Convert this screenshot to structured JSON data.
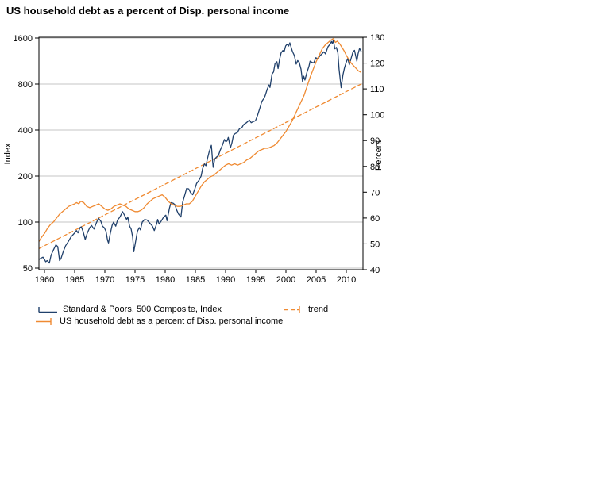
{
  "title": "US household debt as a percent of Disp. personal income",
  "colors": {
    "grid": "#c6c6c6",
    "frame": "#000000",
    "background": "#ffffff",
    "sp500": "#20406b",
    "debt": "#ef8a32"
  },
  "chart_data": {
    "type": "line",
    "title": "US household debt as a percent of Disp. personal income",
    "grid": "horizontal",
    "legend_position": "below",
    "x_axis": {
      "range": [
        1959.1,
        2012.8
      ],
      "ticks": [
        1960,
        1965,
        1970,
        1975,
        1980,
        1985,
        1990,
        1995,
        2000,
        2005,
        2010
      ]
    },
    "left_axis": {
      "label": "Index",
      "scale": "log",
      "ticks": [
        1600,
        800,
        400,
        200,
        100,
        50
      ]
    },
    "right_axis": {
      "label": "Percent",
      "scale": "linear",
      "range": [
        40,
        130
      ],
      "ticks": [
        130,
        120,
        110,
        100,
        90,
        80,
        70,
        60,
        50,
        40
      ]
    },
    "series": [
      {
        "name": "Standard & Poors, 500 Composite, Index",
        "axis": "left",
        "color": "#20406b",
        "style": "solid",
        "points": [
          [
            1959.1,
            57
          ],
          [
            1959.4,
            58
          ],
          [
            1959.75,
            59
          ],
          [
            1960.0,
            57
          ],
          [
            1960.2,
            55
          ],
          [
            1960.45,
            56
          ],
          [
            1960.8,
            54
          ],
          [
            1961.1,
            61
          ],
          [
            1961.5,
            66
          ],
          [
            1961.9,
            71
          ],
          [
            1962.2,
            69
          ],
          [
            1962.5,
            56
          ],
          [
            1962.75,
            58
          ],
          [
            1963.1,
            64
          ],
          [
            1963.5,
            70
          ],
          [
            1963.9,
            74
          ],
          [
            1964.4,
            80
          ],
          [
            1964.9,
            84
          ],
          [
            1965.3,
            88
          ],
          [
            1965.55,
            85
          ],
          [
            1965.9,
            92
          ],
          [
            1966.1,
            93
          ],
          [
            1966.4,
            87
          ],
          [
            1966.75,
            77
          ],
          [
            1967.1,
            85
          ],
          [
            1967.5,
            92
          ],
          [
            1967.8,
            95
          ],
          [
            1968.2,
            90
          ],
          [
            1968.6,
            99
          ],
          [
            1968.95,
            106
          ],
          [
            1969.35,
            101
          ],
          [
            1969.6,
            94
          ],
          [
            1969.9,
            92
          ],
          [
            1970.2,
            87
          ],
          [
            1970.45,
            76
          ],
          [
            1970.6,
            73
          ],
          [
            1970.9,
            84
          ],
          [
            1971.2,
            95
          ],
          [
            1971.45,
            100
          ],
          [
            1971.8,
            94
          ],
          [
            1972.1,
            103
          ],
          [
            1972.5,
            108
          ],
          [
            1972.95,
            117
          ],
          [
            1973.2,
            112
          ],
          [
            1973.6,
            104
          ],
          [
            1973.8,
            108
          ],
          [
            1974.1,
            94
          ],
          [
            1974.35,
            90
          ],
          [
            1974.6,
            80
          ],
          [
            1974.8,
            64
          ],
          [
            1975.1,
            75
          ],
          [
            1975.4,
            87
          ],
          [
            1975.7,
            92
          ],
          [
            1975.9,
            89
          ],
          [
            1976.2,
            100
          ],
          [
            1976.6,
            104
          ],
          [
            1977.0,
            103
          ],
          [
            1977.4,
            99
          ],
          [
            1977.9,
            94
          ],
          [
            1978.2,
            88
          ],
          [
            1978.6,
            98
          ],
          [
            1978.75,
            104
          ],
          [
            1979.0,
            97
          ],
          [
            1979.3,
            101
          ],
          [
            1979.75,
            108
          ],
          [
            1980.1,
            111
          ],
          [
            1980.3,
            102
          ],
          [
            1980.7,
            123
          ],
          [
            1980.95,
            134
          ],
          [
            1981.3,
            133
          ],
          [
            1981.6,
            130
          ],
          [
            1981.9,
            120
          ],
          [
            1982.2,
            113
          ],
          [
            1982.6,
            108
          ],
          [
            1982.9,
            135
          ],
          [
            1983.2,
            148
          ],
          [
            1983.55,
            166
          ],
          [
            1983.9,
            165
          ],
          [
            1984.2,
            156
          ],
          [
            1984.55,
            151
          ],
          [
            1984.9,
            164
          ],
          [
            1985.2,
            179
          ],
          [
            1985.6,
            188
          ],
          [
            1985.95,
            200
          ],
          [
            1986.2,
            224
          ],
          [
            1986.5,
            240
          ],
          [
            1986.75,
            234
          ],
          [
            1987.0,
            260
          ],
          [
            1987.3,
            290
          ],
          [
            1987.65,
            318
          ],
          [
            1987.85,
            250
          ],
          [
            1987.95,
            228
          ],
          [
            1988.2,
            258
          ],
          [
            1988.5,
            266
          ],
          [
            1988.8,
            272
          ],
          [
            1989.1,
            295
          ],
          [
            1989.5,
            320
          ],
          [
            1989.8,
            347
          ],
          [
            1990.05,
            335
          ],
          [
            1990.25,
            340
          ],
          [
            1990.45,
            358
          ],
          [
            1990.8,
            306
          ],
          [
            1991.05,
            330
          ],
          [
            1991.3,
            370
          ],
          [
            1991.6,
            380
          ],
          [
            1991.95,
            385
          ],
          [
            1992.3,
            408
          ],
          [
            1992.7,
            415
          ],
          [
            1993.0,
            435
          ],
          [
            1993.4,
            445
          ],
          [
            1993.95,
            465
          ],
          [
            1994.25,
            447
          ],
          [
            1994.6,
            455
          ],
          [
            1994.95,
            460
          ],
          [
            1995.3,
            500
          ],
          [
            1995.7,
            560
          ],
          [
            1996.0,
            615
          ],
          [
            1996.35,
            645
          ],
          [
            1996.55,
            670
          ],
          [
            1996.9,
            740
          ],
          [
            1997.2,
            790
          ],
          [
            1997.35,
            760
          ],
          [
            1997.7,
            930
          ],
          [
            1997.95,
            960
          ],
          [
            1998.2,
            1090
          ],
          [
            1998.5,
            1120
          ],
          [
            1998.7,
            1010
          ],
          [
            1998.95,
            1160
          ],
          [
            1999.2,
            1280
          ],
          [
            1999.5,
            1330
          ],
          [
            1999.7,
            1300
          ],
          [
            1999.95,
            1420
          ],
          [
            2000.2,
            1460
          ],
          [
            2000.45,
            1420
          ],
          [
            2000.65,
            1490
          ],
          [
            2000.9,
            1380
          ],
          [
            2001.1,
            1300
          ],
          [
            2001.4,
            1230
          ],
          [
            2001.7,
            1080
          ],
          [
            2001.95,
            1140
          ],
          [
            2002.2,
            1110
          ],
          [
            2002.5,
            1000
          ],
          [
            2002.75,
            830
          ],
          [
            2002.95,
            900
          ],
          [
            2003.15,
            850
          ],
          [
            2003.5,
            960
          ],
          [
            2003.8,
            1040
          ],
          [
            2004.0,
            1130
          ],
          [
            2004.3,
            1110
          ],
          [
            2004.6,
            1100
          ],
          [
            2004.95,
            1190
          ],
          [
            2005.3,
            1170
          ],
          [
            2005.6,
            1220
          ],
          [
            2005.95,
            1260
          ],
          [
            2006.3,
            1300
          ],
          [
            2006.55,
            1260
          ],
          [
            2006.95,
            1400
          ],
          [
            2007.3,
            1460
          ],
          [
            2007.55,
            1520
          ],
          [
            2007.7,
            1470
          ],
          [
            2007.85,
            1550
          ],
          [
            2008.1,
            1360
          ],
          [
            2008.35,
            1390
          ],
          [
            2008.6,
            1280
          ],
          [
            2008.8,
            1000
          ],
          [
            2008.95,
            890
          ],
          [
            2009.15,
            757
          ],
          [
            2009.45,
            920
          ],
          [
            2009.7,
            1020
          ],
          [
            2009.95,
            1100
          ],
          [
            2010.25,
            1180
          ],
          [
            2010.5,
            1070
          ],
          [
            2010.8,
            1180
          ],
          [
            2011.1,
            1300
          ],
          [
            2011.35,
            1330
          ],
          [
            2011.6,
            1200
          ],
          [
            2011.75,
            1130
          ],
          [
            2011.95,
            1260
          ],
          [
            2012.2,
            1370
          ],
          [
            2012.45,
            1310
          ]
        ]
      },
      {
        "name": "trend",
        "axis": "right",
        "color": "#ef8a32",
        "style": "dashed",
        "points": [
          [
            1959.1,
            48.2
          ],
          [
            2012.8,
            112.3
          ]
        ]
      },
      {
        "name": "US household debt as a percent of Disp. personal income",
        "axis": "right",
        "color": "#ef8a32",
        "style": "solid",
        "points": [
          [
            1959.1,
            51
          ],
          [
            1959.5,
            52.5
          ],
          [
            1960.0,
            54
          ],
          [
            1960.5,
            56
          ],
          [
            1961.0,
            57.5
          ],
          [
            1961.5,
            58.5
          ],
          [
            1962.0,
            60
          ],
          [
            1962.5,
            61.5
          ],
          [
            1963.0,
            62.5
          ],
          [
            1963.5,
            63.5
          ],
          [
            1964.0,
            64.5
          ],
          [
            1964.5,
            65
          ],
          [
            1965.0,
            65.5
          ],
          [
            1965.3,
            66
          ],
          [
            1965.7,
            65.5
          ],
          [
            1966.0,
            66.5
          ],
          [
            1966.5,
            66
          ],
          [
            1967.0,
            64.5
          ],
          [
            1967.5,
            64
          ],
          [
            1968.0,
            64.5
          ],
          [
            1968.5,
            65
          ],
          [
            1969.0,
            65.5
          ],
          [
            1969.5,
            64.5
          ],
          [
            1970.0,
            63.5
          ],
          [
            1970.5,
            63
          ],
          [
            1971.0,
            63.5
          ],
          [
            1971.5,
            64.5
          ],
          [
            1972.0,
            65
          ],
          [
            1972.5,
            65.5
          ],
          [
            1973.0,
            65
          ],
          [
            1973.5,
            64.5
          ],
          [
            1974.0,
            63.5
          ],
          [
            1974.5,
            63
          ],
          [
            1975.0,
            62.5
          ],
          [
            1975.5,
            62.5
          ],
          [
            1976.0,
            63
          ],
          [
            1976.5,
            64
          ],
          [
            1977.0,
            65.5
          ],
          [
            1977.5,
            66.5
          ],
          [
            1978.0,
            67.5
          ],
          [
            1978.5,
            68
          ],
          [
            1979.0,
            68.5
          ],
          [
            1979.5,
            69
          ],
          [
            1980.0,
            68
          ],
          [
            1980.5,
            66.5
          ],
          [
            1981.0,
            65.5
          ],
          [
            1981.5,
            65
          ],
          [
            1982.0,
            64.5
          ],
          [
            1982.5,
            64.5
          ],
          [
            1983.0,
            65
          ],
          [
            1983.5,
            65.5
          ],
          [
            1984.0,
            65.5
          ],
          [
            1984.5,
            66.5
          ],
          [
            1985.0,
            68.5
          ],
          [
            1985.5,
            70.5
          ],
          [
            1986.0,
            72.5
          ],
          [
            1986.5,
            74
          ],
          [
            1987.0,
            75
          ],
          [
            1987.5,
            76
          ],
          [
            1988.0,
            76.5
          ],
          [
            1988.5,
            77.5
          ],
          [
            1989.0,
            78.5
          ],
          [
            1989.5,
            79.5
          ],
          [
            1990.0,
            80.5
          ],
          [
            1990.5,
            81
          ],
          [
            1991.0,
            80.5
          ],
          [
            1991.5,
            81
          ],
          [
            1992.0,
            80.5
          ],
          [
            1992.5,
            81
          ],
          [
            1993.0,
            81.5
          ],
          [
            1993.5,
            82.5
          ],
          [
            1994.0,
            83
          ],
          [
            1994.5,
            84
          ],
          [
            1995.0,
            85
          ],
          [
            1995.5,
            86
          ],
          [
            1996.0,
            86.5
          ],
          [
            1996.5,
            87
          ],
          [
            1997.0,
            87
          ],
          [
            1997.5,
            87.5
          ],
          [
            1998.0,
            88
          ],
          [
            1998.5,
            89
          ],
          [
            1999.0,
            90.5
          ],
          [
            1999.5,
            92
          ],
          [
            2000.0,
            93.5
          ],
          [
            2000.5,
            95.5
          ],
          [
            2001.0,
            97.5
          ],
          [
            2001.5,
            100
          ],
          [
            2002.0,
            102.5
          ],
          [
            2002.5,
            105
          ],
          [
            2003.0,
            107.5
          ],
          [
            2003.5,
            111
          ],
          [
            2004.0,
            114.5
          ],
          [
            2004.5,
            117.5
          ],
          [
            2005.0,
            120.5
          ],
          [
            2005.5,
            123
          ],
          [
            2006.0,
            125.5
          ],
          [
            2006.5,
            127
          ],
          [
            2007.0,
            128
          ],
          [
            2007.5,
            129
          ],
          [
            2007.9,
            129.5
          ],
          [
            2008.2,
            128
          ],
          [
            2008.5,
            128.5
          ],
          [
            2008.9,
            127.5
          ],
          [
            2009.3,
            126
          ],
          [
            2009.7,
            124.5
          ],
          [
            2010.0,
            123
          ],
          [
            2010.4,
            121.5
          ],
          [
            2010.8,
            120
          ],
          [
            2011.2,
            119
          ],
          [
            2011.6,
            118
          ],
          [
            2012.0,
            117
          ],
          [
            2012.4,
            116.5
          ]
        ]
      }
    ]
  }
}
